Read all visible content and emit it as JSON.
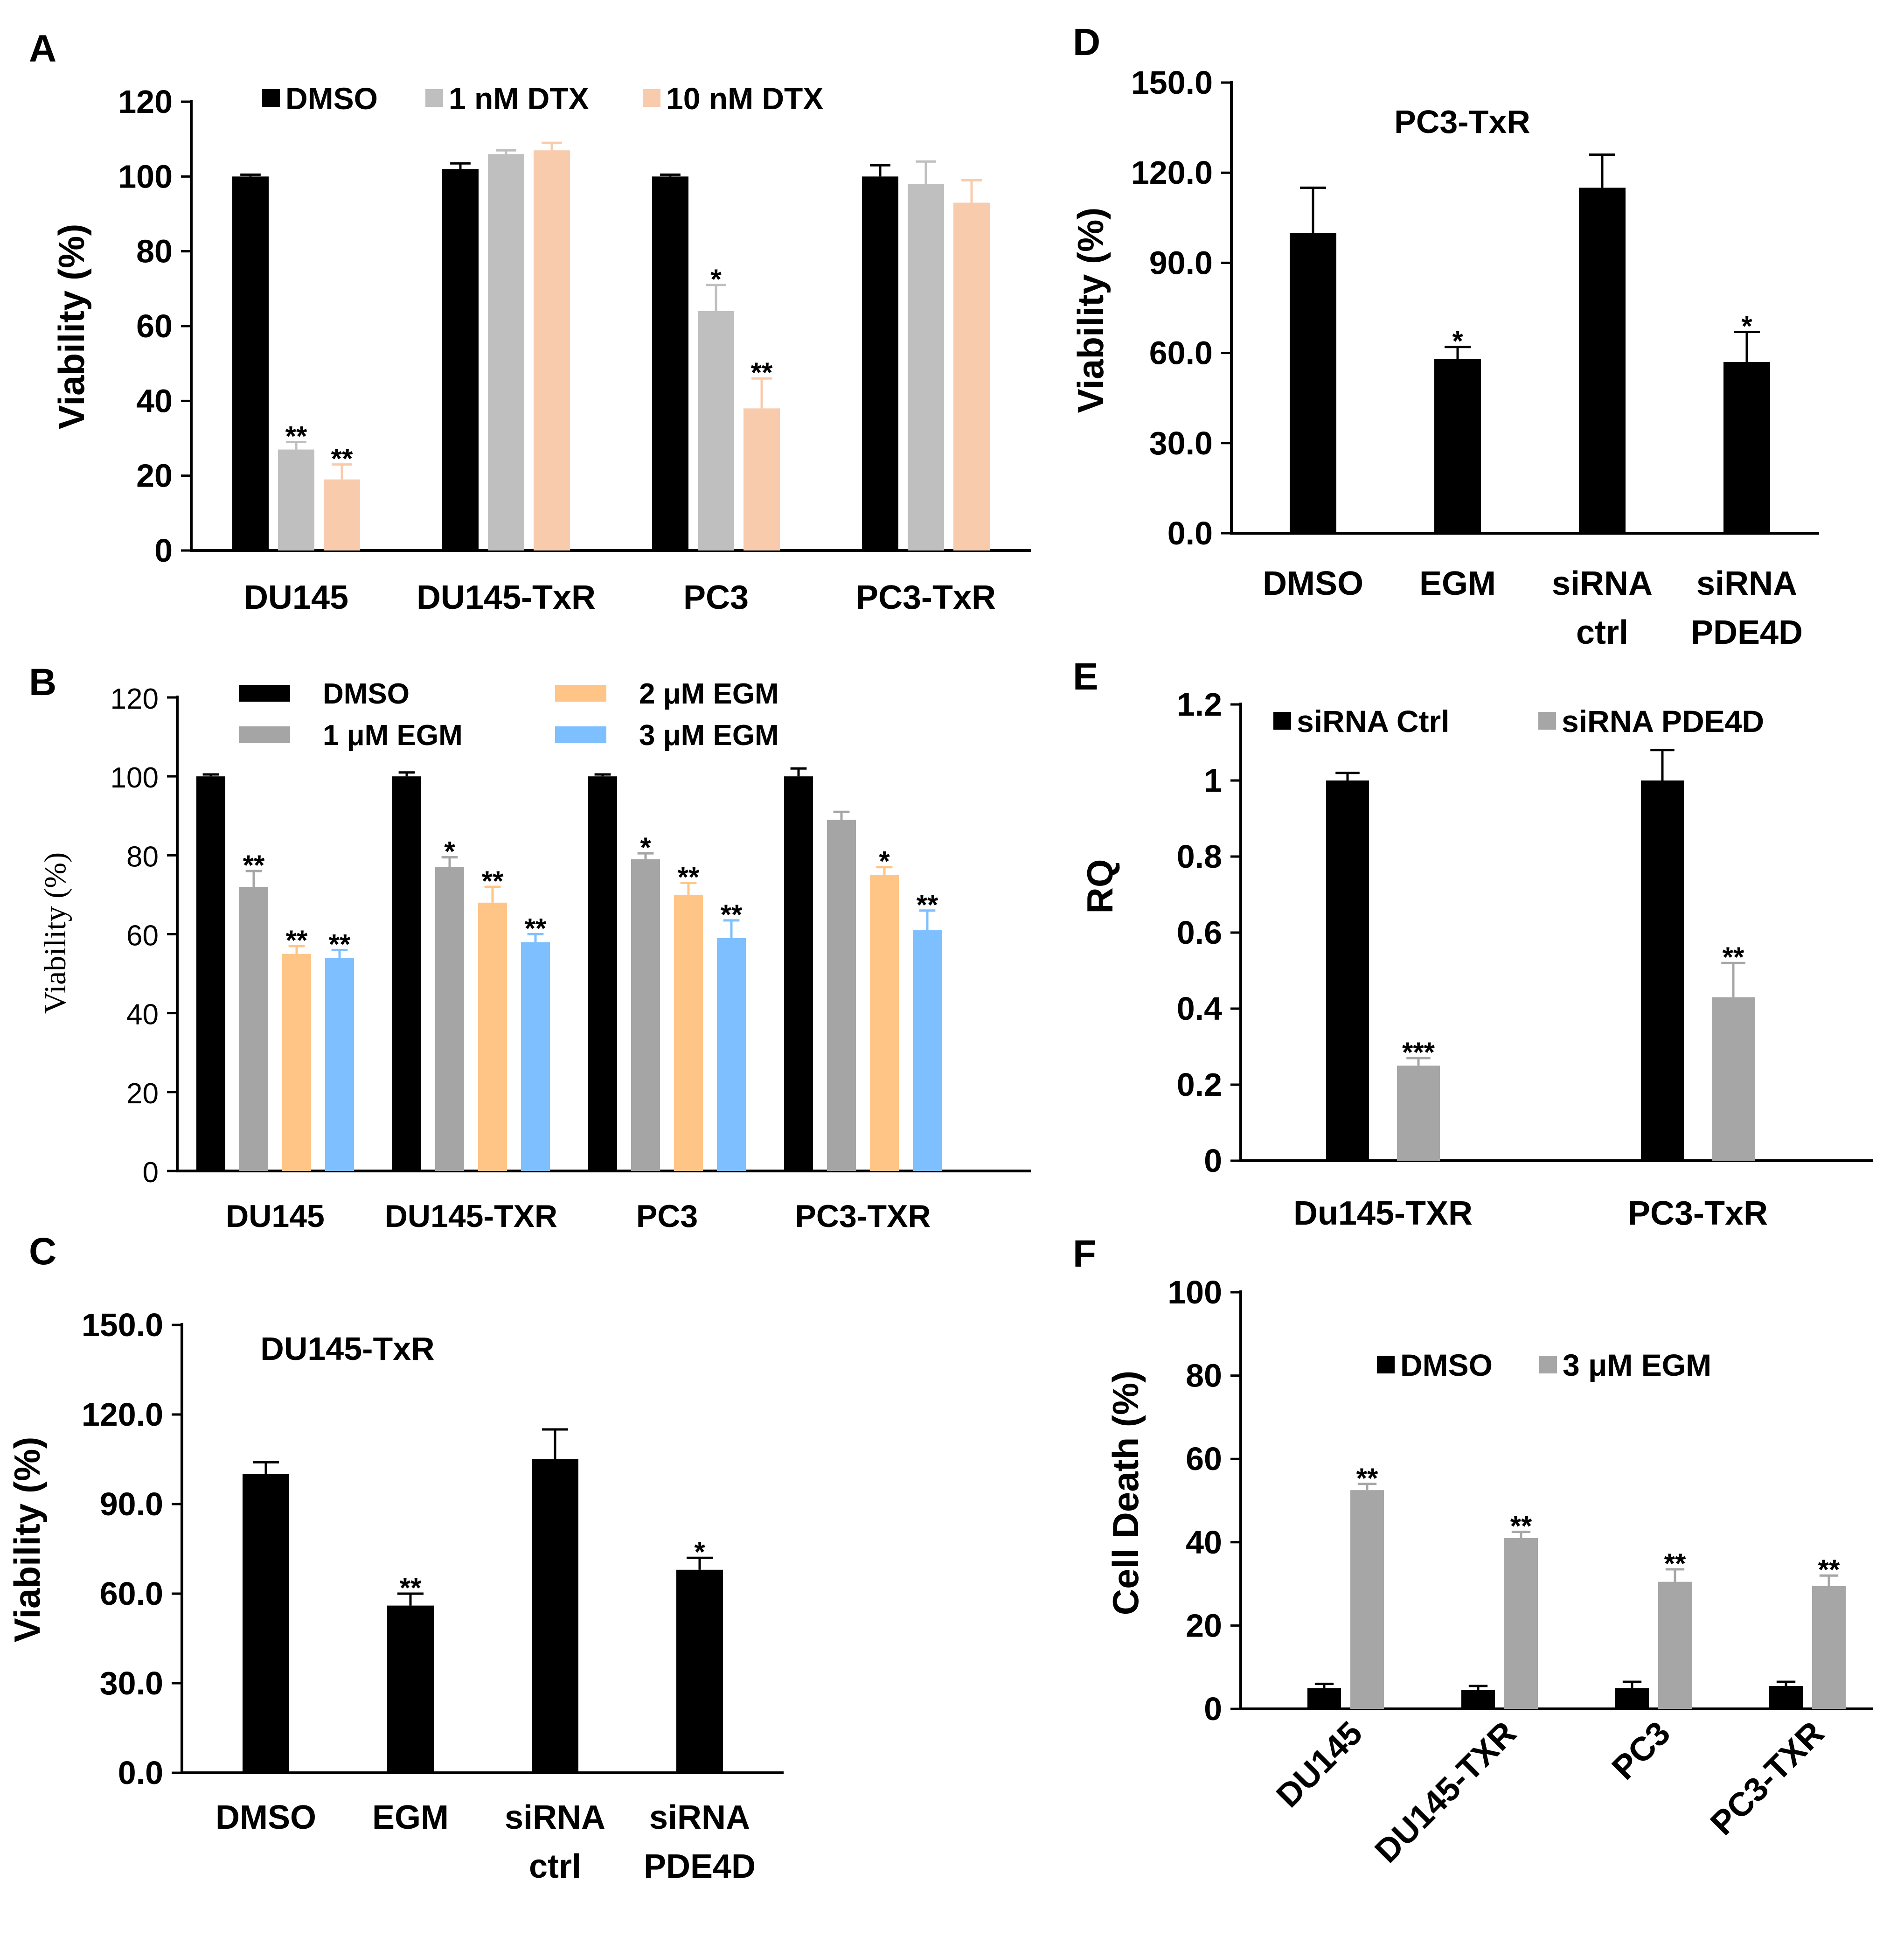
{
  "chart_data": [
    {
      "panel": "A",
      "type": "bar",
      "ylabel": "Viability (%)",
      "ylim": [
        0,
        120
      ],
      "yticks": [
        "0",
        "20",
        "40",
        "60",
        "80",
        "100",
        "120"
      ],
      "categories": [
        "DU145",
        "DU145-TxR",
        "PC3",
        "PC3-TxR"
      ],
      "series": [
        {
          "name": "DMSO",
          "color": "#000000",
          "values": [
            100,
            102,
            100,
            100
          ],
          "errors": [
            0.5,
            1.5,
            0.5,
            3
          ],
          "sig": [
            "",
            "",
            "",
            ""
          ]
        },
        {
          "name": "1 nM DTX",
          "color": "#bfbfbf",
          "values": [
            27,
            106,
            64,
            98
          ],
          "errors": [
            2,
            1,
            7,
            6
          ],
          "sig": [
            "**",
            "",
            "*",
            ""
          ]
        },
        {
          "name": "10 nM DTX",
          "color": "#f8cbad",
          "values": [
            19,
            107,
            38,
            93
          ],
          "errors": [
            4,
            2,
            8,
            6
          ],
          "sig": [
            "**",
            "",
            "**",
            ""
          ]
        }
      ]
    },
    {
      "panel": "B",
      "type": "bar",
      "ylabel": "Viability (%)",
      "ylim": [
        0,
        120
      ],
      "yticks": [
        "0",
        "20",
        "40",
        "60",
        "80",
        "100",
        "120"
      ],
      "categories": [
        "DU145",
        "DU145-TXR",
        "PC3",
        "PC3-TXR"
      ],
      "series": [
        {
          "name": "DMSO",
          "color": "#000000",
          "values": [
            100,
            100,
            100,
            100
          ],
          "errors": [
            0.5,
            1,
            0.5,
            2
          ],
          "sig": [
            "",
            "",
            "",
            ""
          ]
        },
        {
          "name": "1 μM EGM",
          "color": "#a5a5a5",
          "values": [
            72,
            77,
            79,
            89
          ],
          "errors": [
            4,
            2.5,
            1.5,
            2
          ],
          "sig": [
            "**",
            "*",
            "*",
            ""
          ]
        },
        {
          "name": "2 μM EGM",
          "color": "#ffc586",
          "values": [
            55,
            68,
            70,
            75
          ],
          "errors": [
            2,
            4,
            3,
            2
          ],
          "sig": [
            "**",
            "**",
            "**",
            "*"
          ]
        },
        {
          "name": "3 μM EGM",
          "color": "#7ec0ff",
          "values": [
            54,
            58,
            59,
            61
          ],
          "errors": [
            2,
            2,
            4.5,
            5
          ],
          "sig": [
            "**",
            "**",
            "**",
            "**"
          ]
        }
      ]
    },
    {
      "panel": "C",
      "type": "bar",
      "title": "DU145-TxR",
      "ylabel": "Viability (%)",
      "ylim": [
        0,
        150
      ],
      "yticks": [
        "0.0",
        "30.0",
        "60.0",
        "90.0",
        "120.0",
        "150.0"
      ],
      "categories": [
        [
          "DMSO"
        ],
        [
          "EGM"
        ],
        [
          "siRNA",
          "ctrl"
        ],
        [
          "siRNA",
          "PDE4D"
        ]
      ],
      "series": [
        {
          "name": "Viability",
          "color": "#000000",
          "values": [
            100,
            56,
            105,
            68
          ],
          "errors": [
            4,
            4,
            10,
            4
          ],
          "sig": [
            "",
            "**",
            "",
            "*"
          ]
        }
      ]
    },
    {
      "panel": "D",
      "type": "bar",
      "title": "PC3-TxR",
      "ylabel": "Viability (%)",
      "ylim": [
        0,
        150
      ],
      "yticks": [
        "0.0",
        "30.0",
        "60.0",
        "90.0",
        "120.0",
        "150.0"
      ],
      "categories": [
        [
          "DMSO"
        ],
        [
          "EGM"
        ],
        [
          "siRNA",
          "ctrl"
        ],
        [
          "siRNA",
          "PDE4D"
        ]
      ],
      "series": [
        {
          "name": "Viability",
          "color": "#000000",
          "values": [
            100,
            58,
            115,
            57
          ],
          "errors": [
            15,
            4,
            11,
            10
          ],
          "sig": [
            "",
            "*",
            "",
            "*"
          ]
        }
      ]
    },
    {
      "panel": "E",
      "type": "bar",
      "ylabel": "RQ",
      "ylim": [
        0,
        1.2
      ],
      "yticks": [
        "0",
        "0.2",
        "0.4",
        "0.6",
        "0.8",
        "1",
        "1.2"
      ],
      "categories": [
        "Du145-TXR",
        "PC3-TxR"
      ],
      "series": [
        {
          "name": "siRNA Ctrl",
          "color": "#000000",
          "values": [
            1.0,
            1.0
          ],
          "errors": [
            0.02,
            0.08
          ],
          "sig": [
            "",
            ""
          ]
        },
        {
          "name": "siRNA PDE4D",
          "color": "#a6a6a6",
          "values": [
            0.25,
            0.43
          ],
          "errors": [
            0.02,
            0.09
          ],
          "sig": [
            "***",
            "**"
          ]
        }
      ]
    },
    {
      "panel": "F",
      "type": "bar",
      "ylabel": "Cell Death (%)",
      "ylim": [
        0,
        100
      ],
      "yticks": [
        "0",
        "20",
        "40",
        "60",
        "80",
        "100"
      ],
      "categories": [
        "DU145",
        "DU145-TXR",
        "PC3",
        "PC3-TXR"
      ],
      "series": [
        {
          "name": "DMSO",
          "color": "#000000",
          "values": [
            5,
            4.5,
            5,
            5.5
          ],
          "errors": [
            1,
            1,
            1.5,
            1
          ],
          "sig": [
            "",
            "",
            "",
            ""
          ]
        },
        {
          "name": "3 μM EGM",
          "color": "#a6a6a6",
          "values": [
            52.5,
            41,
            30.5,
            29.5
          ],
          "errors": [
            1.5,
            1.5,
            3,
            2.5
          ],
          "sig": [
            "**",
            "**",
            "**",
            "**"
          ]
        }
      ]
    }
  ]
}
